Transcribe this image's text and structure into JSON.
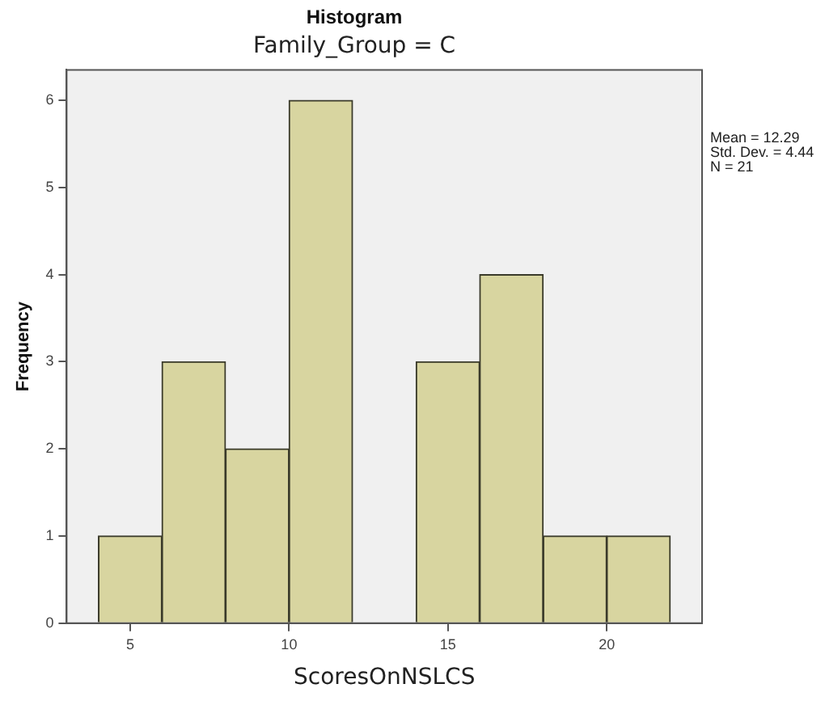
{
  "chart_data": {
    "type": "histogram",
    "title": "Histogram",
    "subtitle": "Family_Group = C",
    "xlabel": "ScoresOnNSLCS",
    "ylabel": "Frequency",
    "bins": [
      4,
      6,
      8,
      10,
      12,
      14,
      16,
      18,
      20,
      22
    ],
    "values": [
      1,
      3,
      2,
      6,
      0,
      3,
      4,
      1,
      1
    ],
    "color": "#d8d5a0",
    "xlim": [
      3,
      23
    ],
    "xticks": [
      5,
      10,
      15,
      20
    ],
    "ylim": [
      0,
      6.35
    ],
    "yticks": [
      0,
      1,
      2,
      3,
      4,
      5,
      6
    ],
    "grid": false,
    "legend": false,
    "annotations": [
      "Mean = 12.29",
      "Std. Dev. = 4.44",
      "N = 21"
    ]
  }
}
